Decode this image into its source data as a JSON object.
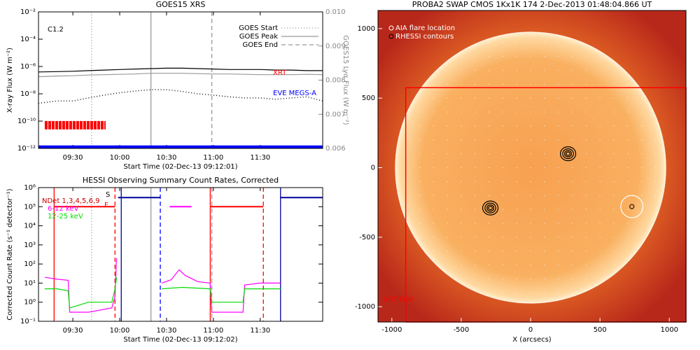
{
  "chart_data": [
    {
      "type": "line",
      "title": "GOES15 XRS",
      "xlabel": "Start Time (02-Dec-13 09:12:01)",
      "ylabel": "X-ray Flux (W m⁻²)",
      "y2label": "GOES15 Lyα Flux (W m⁻²)",
      "xlim": [
        "09:08",
        "12:10"
      ],
      "xticks": [
        "09:30",
        "10:00",
        "10:30",
        "11:00",
        "11:30"
      ],
      "ylog": true,
      "ylim": [
        1e-12,
        0.01
      ],
      "yticks": [
        {
          "value": 1e-12,
          "label": "10⁻¹²"
        },
        {
          "value": 1e-10,
          "label": "10⁻¹⁰"
        },
        {
          "value": 1e-08,
          "label": "10⁻⁸"
        },
        {
          "value": 1e-06,
          "label": "10⁻⁶"
        },
        {
          "value": 0.0001,
          "label": "10⁻⁴"
        },
        {
          "value": 0.01,
          "label": "10⁻²"
        }
      ],
      "y2lim": [
        0.006,
        0.01
      ],
      "y2ticks": [
        0.006,
        0.007,
        0.008,
        0.009,
        {
          "value": 0.01,
          "label": "0.010"
        }
      ],
      "series": [
        {
          "color": "#000000",
          "style": "solid",
          "x": [
            "09:08",
            "09:20",
            "09:30",
            "09:40",
            "09:50",
            "10:00",
            "10:10",
            "10:20",
            "10:30",
            "10:40",
            "10:50",
            "11:00",
            "11:10",
            "11:20",
            "11:30",
            "11:40",
            "11:50",
            "12:00",
            "12:10"
          ],
          "values": [
            4e-07,
            4.2e-07,
            4.5e-07,
            5e-07,
            5.5e-07,
            6e-07,
            6.5e-07,
            7e-07,
            7.5e-07,
            7.5e-07,
            7e-07,
            6.5e-07,
            6e-07,
            6e-07,
            6e-07,
            5.5e-07,
            5.5e-07,
            5e-07,
            5e-07
          ]
        },
        {
          "color": "#000000",
          "style": "dotted",
          "x": [
            "09:08",
            "09:20",
            "09:30",
            "09:40",
            "09:50",
            "10:00",
            "10:10",
            "10:20",
            "10:30",
            "10:40",
            "10:50",
            "11:00",
            "11:10",
            "11:20",
            "11:30",
            "11:40",
            "11:50",
            "12:00",
            "12:10"
          ],
          "values": [
            2e-09,
            3e-09,
            3e-09,
            5e-09,
            8e-09,
            1.2e-08,
            1.6e-08,
            2e-08,
            2e-08,
            1.5e-08,
            1e-08,
            8e-09,
            6e-09,
            5e-09,
            5e-09,
            4e-09,
            5e-09,
            6e-09,
            3e-09
          ]
        },
        {
          "color": "#999999",
          "style": "solid",
          "axis": "y2",
          "x": [
            "09:08",
            "09:20",
            "09:30",
            "09:40",
            "09:50",
            "10:00",
            "10:10",
            "10:20",
            "10:30",
            "10:40",
            "10:50",
            "11:00",
            "11:10",
            "11:20",
            "11:30",
            "11:40",
            "11:50",
            "12:00",
            "12:10"
          ],
          "values": [
            0.0081,
            0.00812,
            0.00813,
            0.00815,
            0.00816,
            0.00817,
            0.00818,
            0.0082,
            0.0082,
            0.0082,
            0.00819,
            0.00818,
            0.00818,
            0.00817,
            0.00816,
            0.00816,
            0.00816,
            0.00817,
            0.00816
          ]
        }
      ],
      "segments": [
        {
          "x": [
            "09:12",
            "09:51"
          ],
          "value": 5e-11,
          "color": "#ff0000",
          "style": "blocks"
        },
        {
          "x": [
            "09:08",
            "12:10"
          ],
          "value": 1.3e-12,
          "color": "#0000ff",
          "style": "thick"
        }
      ],
      "vlines": [
        {
          "name": "GOES Start",
          "x": "09:42",
          "color": "#999999",
          "style": "dotted"
        },
        {
          "name": "GOES Peak",
          "x": "10:20",
          "color": "#999999",
          "style": "solid"
        },
        {
          "name": "GOES End",
          "x": "10:59",
          "color": "#999999",
          "style": "dashed"
        }
      ],
      "annotations": [
        {
          "text": "C1.2",
          "color": "#000000"
        },
        {
          "text": "XRT",
          "color": "#ff0000"
        },
        {
          "text": "EVE MEGS-A",
          "color": "#0000ff"
        }
      ]
    },
    {
      "type": "line",
      "title": "HESSI Observing Summary Count Rates, Corrected",
      "xlabel": "Start Time (02-Dec-13 09:12:02)",
      "ylabel": "Corrected Count Rate (s⁻¹ detector⁻¹)",
      "xlim": [
        "09:08",
        "12:10"
      ],
      "xticks": [
        "09:30",
        "10:00",
        "10:30",
        "11:00",
        "11:30"
      ],
      "ylog": true,
      "ylim": [
        0.1,
        1000000.0
      ],
      "yticks": [
        {
          "value": 0.1,
          "label": "10⁻¹"
        },
        {
          "value": 1,
          "label": "10⁰"
        },
        {
          "value": 10,
          "label": "10¹"
        },
        {
          "value": 100,
          "label": "10²"
        },
        {
          "value": 1000,
          "label": "10³"
        },
        {
          "value": 10000,
          "label": "10⁴"
        },
        {
          "value": 100000,
          "label": "10⁵"
        },
        {
          "value": 1000000,
          "label": "10⁶"
        }
      ],
      "series": [
        {
          "name": "6-12 keV",
          "color": "#ff00ff",
          "style": "solid",
          "x": [
            "09:12",
            "09:20",
            "09:27",
            "09:28",
            "09:40",
            "09:55",
            "09:57",
            "09:58",
            "09:59",
            "10:27",
            "10:33",
            "10:38",
            "10:42",
            "10:50",
            "10:58",
            "10:59",
            "11:19",
            "11:20",
            "11:30",
            "11:43"
          ],
          "values": [
            20,
            16,
            14,
            0.3,
            0.3,
            0.5,
            2,
            200,
            null,
            10,
            15,
            50,
            25,
            12,
            10,
            0.3,
            0.3,
            8,
            10,
            10
          ]
        },
        {
          "name": "12-25 keV",
          "color": "#00dd00",
          "style": "solid",
          "x": [
            "09:12",
            "09:20",
            "09:27",
            "09:28",
            "09:40",
            "09:55",
            "09:57",
            "09:58",
            "09:59",
            "10:27",
            "10:40",
            "10:58",
            "10:59",
            "11:19",
            "11:20",
            "11:30",
            "11:43"
          ],
          "values": [
            5,
            5,
            4,
            0.5,
            1,
            1,
            5,
            20,
            null,
            5,
            6,
            5,
            1,
            1,
            5,
            5,
            5
          ]
        }
      ],
      "segments": [
        {
          "x": [
            "09:18",
            "09:57"
          ],
          "value": 100000,
          "color": "#ff0000",
          "style": "solid"
        },
        {
          "x": [
            "10:58",
            "11:32"
          ],
          "value": 100000,
          "color": "#ff0000",
          "style": "solid"
        },
        {
          "x": [
            "09:59",
            "10:26"
          ],
          "value": 300000,
          "color": "#000099",
          "style": "solid"
        },
        {
          "x": [
            "11:43",
            "12:10"
          ],
          "value": 300000,
          "color": "#000099",
          "style": "solid"
        },
        {
          "x": [
            "10:32",
            "10:46"
          ],
          "value": 100000,
          "color": "#ff00ff",
          "style": "solid"
        }
      ],
      "vlines": [
        {
          "x": "09:18",
          "color": "#ff0000",
          "style": "solid"
        },
        {
          "x": "09:57",
          "color": "#ff0000",
          "style": "dashed"
        },
        {
          "x": "10:01",
          "color": "#000099",
          "style": "solid"
        },
        {
          "x": "10:26",
          "color": "#0000ff",
          "style": "dashed"
        },
        {
          "x": "10:58",
          "color": "#ff0000",
          "style": "solid"
        },
        {
          "x": "11:32",
          "color": "#ff0000",
          "style": "dashed"
        },
        {
          "x": "11:43",
          "color": "#000099",
          "style": "solid"
        },
        {
          "x": "09:42",
          "color": "#999999",
          "style": "dotted"
        },
        {
          "x": "10:20",
          "color": "#999999",
          "style": "solid"
        },
        {
          "x": "10:59",
          "color": "#999999",
          "style": "dashed"
        }
      ],
      "annotations": [
        {
          "text": "NDet 1,3,4,5,6,9",
          "color": "#cc0000"
        },
        {
          "text": "S",
          "color": "#000000"
        },
        {
          "text": "F",
          "color": "#ff0000"
        }
      ]
    },
    {
      "type": "image",
      "title": "PROBA2 SWAP CMOS 1Kx1K 174  2-Dec-2013 01:48:04.866 UT",
      "xlabel": "X (arcsecs)",
      "xlim": [
        -1100,
        1120
      ],
      "ylim": [
        -1110,
        1130
      ],
      "xticks": [
        -1000,
        -500,
        0,
        500,
        1000
      ],
      "yticks": [
        -1000,
        -500,
        0,
        500,
        1000
      ],
      "legend": [
        "AIA flare location",
        "RHESSI contours"
      ],
      "fov": {
        "label": "XRT FOV",
        "x": [
          -900,
          1120
        ],
        "y": [
          -1110,
          575
        ],
        "color": "#ff0000"
      },
      "flare": {
        "x": 730,
        "y": -280,
        "r": 80
      },
      "contours": [
        {
          "x": -290,
          "y": -290
        },
        {
          "x": 270,
          "y": 100
        }
      ]
    }
  ]
}
